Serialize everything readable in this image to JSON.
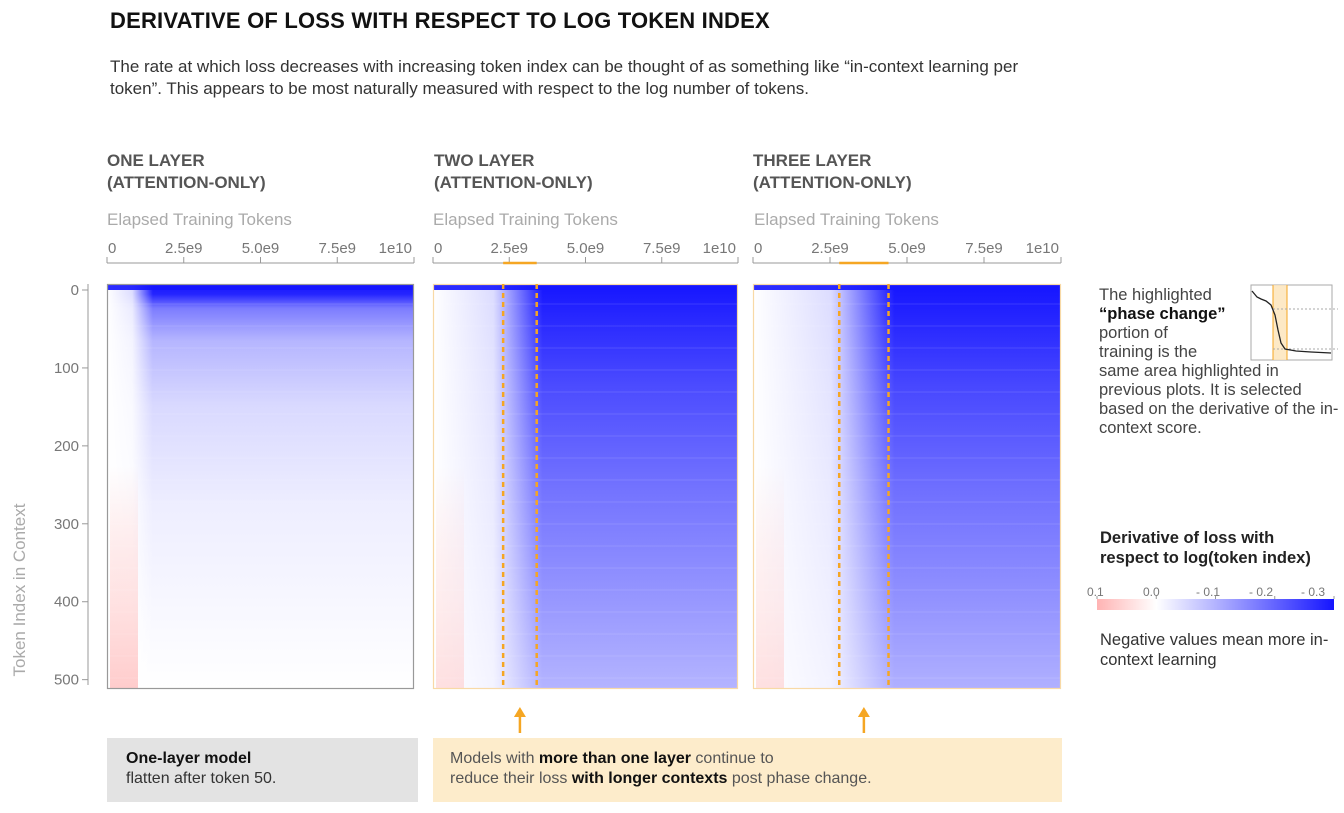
{
  "title": "DERIVATIVE OF LOSS WITH RESPECT TO LOG TOKEN INDEX",
  "subtitle": "The rate at which loss decreases with increasing token index can be thought of as something like “in-context learning per token”. This appears to be most naturally measured with respect to the log number of tokens.",
  "colors": {
    "negative": "#1515ff",
    "zero": "#ffffff",
    "positive": "#ffb3b3",
    "phase_change": "#f5a623",
    "panel_border_highlight": "#f8d9a6",
    "panel_border_plain": "#999999"
  },
  "panels": [
    {
      "title_line1": "ONE LAYER",
      "title_line2": "(ATTENTION-ONLY)",
      "xlabel": "Elapsed Training Tokens"
    },
    {
      "title_line1": "TWO LAYER",
      "title_line2": "(ATTENTION-ONLY)",
      "xlabel": "Elapsed Training Tokens"
    },
    {
      "title_line1": "THREE LAYER",
      "title_line2": "(ATTENTION-ONLY)",
      "xlabel": "Elapsed Training Tokens"
    }
  ],
  "x_tick_labels": [
    "0",
    "2.5e9",
    "5.0e9",
    "7.5e9",
    "1e10"
  ],
  "ylabel": "Token Index in Context",
  "y_tick_labels": [
    "0",
    "100",
    "200",
    "300",
    "400",
    "500"
  ],
  "side_note": {
    "line1": "The highlighted",
    "bold": "“phase change”",
    "line3": "portion of",
    "line4": "training is the",
    "rest": "same area highlighted in previous plots. It is selected based on the derivative of the in-context score."
  },
  "colorbar": {
    "title_line1": "Derivative of loss with",
    "title_line2": "respect to log(token index)",
    "tick_labels": [
      "0.1",
      "0.0",
      "- 0.1",
      "- 0.2",
      "- 0.3"
    ],
    "note": "Negative values mean more in-context learning"
  },
  "box1": {
    "bold": "One-layer model",
    "text": "flatten after token 50."
  },
  "box2": {
    "part1": "Models with ",
    "bold1": "more than one layer",
    "part2": " continue to",
    "part3": "reduce their loss ",
    "bold2": "with longer contexts",
    "part4": " post phase change."
  },
  "chart_data": {
    "type": "heatmap",
    "x": {
      "label": "Elapsed Training Tokens",
      "range": [
        0,
        10000000000
      ],
      "ticks": [
        0,
        2500000000,
        5000000000,
        7500000000,
        10000000000
      ]
    },
    "y": {
      "label": "Token Index in Context",
      "range": [
        0,
        512
      ],
      "ticks": [
        0,
        100,
        200,
        300,
        400,
        500
      ]
    },
    "color_scale": {
      "min": -0.3,
      "max": 0.1,
      "ticks": [
        0.1,
        0.0,
        -0.1,
        -0.2,
        -0.3
      ]
    },
    "panels": [
      {
        "name": "ONE LAYER (ATTENTION-ONLY)",
        "phase_change": null,
        "late_training_derivative_by_token_index": [
          [
            0,
            -0.3
          ],
          [
            10,
            -0.28
          ],
          [
            30,
            -0.12
          ],
          [
            50,
            -0.06
          ],
          [
            100,
            -0.03
          ],
          [
            200,
            -0.015
          ],
          [
            300,
            -0.005
          ],
          [
            500,
            0.0
          ]
        ]
      },
      {
        "name": "TWO LAYER (ATTENTION-ONLY)",
        "phase_change": [
          2300000000,
          3400000000
        ],
        "late_training_derivative_by_token_index": [
          [
            0,
            -0.3
          ],
          [
            10,
            -0.3
          ],
          [
            50,
            -0.25
          ],
          [
            100,
            -0.22
          ],
          [
            200,
            -0.19
          ],
          [
            300,
            -0.16
          ],
          [
            400,
            -0.14
          ],
          [
            500,
            -0.12
          ]
        ]
      },
      {
        "name": "THREE LAYER (ATTENTION-ONLY)",
        "phase_change": [
          2800000000,
          4400000000
        ],
        "late_training_derivative_by_token_index": [
          [
            0,
            -0.3
          ],
          [
            10,
            -0.3
          ],
          [
            50,
            -0.26
          ],
          [
            100,
            -0.23
          ],
          [
            200,
            -0.2
          ],
          [
            300,
            -0.17
          ],
          [
            400,
            -0.15
          ],
          [
            500,
            -0.13
          ]
        ]
      }
    ]
  }
}
